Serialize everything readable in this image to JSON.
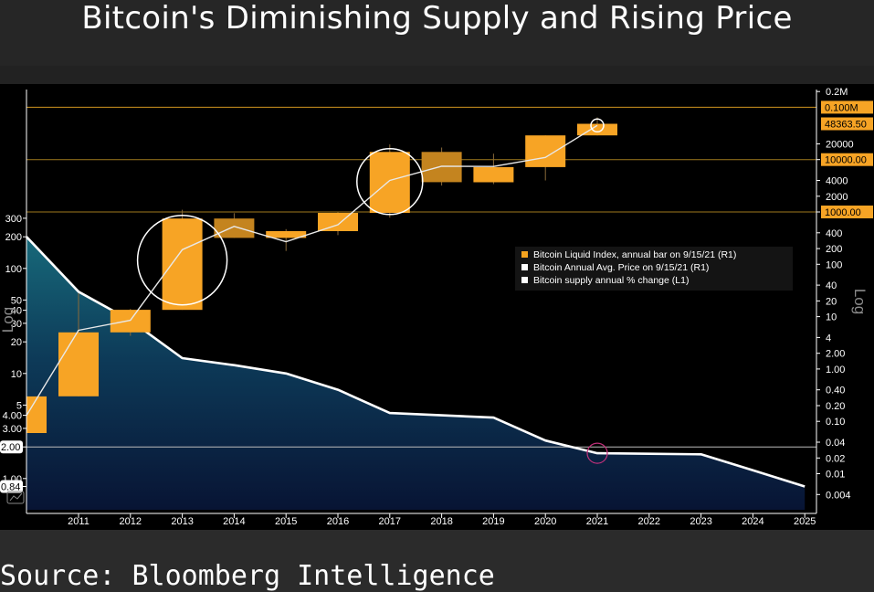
{
  "title": "Bitcoin's Diminishing Supply and Rising Price",
  "source": "Source: Bloomberg Intelligence",
  "chart_data": {
    "type": "mixed",
    "x_categories": [
      "2011",
      "2012",
      "2013",
      "2014",
      "2015",
      "2016",
      "2017",
      "2018",
      "2019",
      "2020",
      "2021",
      "2022",
      "2023",
      "2024",
      "2025"
    ],
    "left_axis": {
      "label": "Log",
      "scale": "log",
      "ticks": [
        "300",
        "200",
        "100",
        "50",
        "40",
        "30",
        "20",
        "10",
        "5",
        "4.00",
        "3.00",
        "2.00",
        "1.00",
        "0.84"
      ],
      "highlighted": [
        "2.00",
        "0.84"
      ]
    },
    "right_axis": {
      "label": "Log",
      "scale": "log",
      "ticks": [
        "0.2M",
        "20000",
        "10000",
        "4000",
        "2000",
        "1000",
        "400",
        "200",
        "100",
        "40",
        "20",
        "10",
        "4",
        "2.00",
        "1.00",
        "0.40",
        "0.20",
        "0.10",
        "0.04",
        "0.02",
        "0.01",
        "0.004"
      ],
      "badges": [
        "0.100M",
        "48363.50",
        "10000.00",
        "1000.00"
      ]
    },
    "legend": {
      "placement": "center-right",
      "entries": [
        {
          "label": "Bitcoin Liquid Index, annual bar on 9/15/21 (R1)",
          "color": "#f5a31f"
        },
        {
          "label": "Bitcoin Annual Avg. Price on 9/15/21 (R1)",
          "color": "#ffffff"
        },
        {
          "label": "Bitcoin supply annual % change  (L1)",
          "color": "#ffffff"
        }
      ]
    },
    "supply_pct_change": {
      "x": [
        2010,
        2011,
        2012,
        2013,
        2014,
        2015,
        2016,
        2017,
        2018,
        2019,
        2020,
        2021,
        2022,
        2023,
        2024,
        2025
      ],
      "y": [
        200,
        60,
        32,
        14,
        12,
        10,
        7,
        4.2,
        4.0,
        3.8,
        2.3,
        1.74,
        1.72,
        1.7,
        1.2,
        0.84
      ]
    },
    "annual_bars": [
      {
        "year": 2010,
        "open": 0.06,
        "close": 0.3,
        "high": 0.3,
        "low": 0.06,
        "color": "#f7a425"
      },
      {
        "year": 2011,
        "open": 0.3,
        "close": 5,
        "high": 28,
        "low": 0.3,
        "color": "#f7a425"
      },
      {
        "year": 2012,
        "open": 5,
        "close": 13.5,
        "high": 14,
        "low": 4.3,
        "color": "#f7a425"
      },
      {
        "year": 2013,
        "open": 13.5,
        "close": 750,
        "high": 1100,
        "low": 13.5,
        "color": "#f7a425"
      },
      {
        "year": 2014,
        "open": 750,
        "close": 320,
        "high": 950,
        "low": 320,
        "color": "#c4841f"
      },
      {
        "year": 2015,
        "open": 320,
        "close": 430,
        "high": 470,
        "low": 180,
        "color": "#f7a425"
      },
      {
        "year": 2016,
        "open": 430,
        "close": 960,
        "high": 980,
        "low": 360,
        "color": "#f7a425"
      },
      {
        "year": 2017,
        "open": 960,
        "close": 14000,
        "high": 19500,
        "low": 780,
        "color": "#f7a425"
      },
      {
        "year": 2018,
        "open": 14000,
        "close": 3700,
        "high": 17000,
        "low": 3200,
        "color": "#c4841f"
      },
      {
        "year": 2019,
        "open": 3700,
        "close": 7200,
        "high": 13000,
        "low": 3400,
        "color": "#f7a425"
      },
      {
        "year": 2020,
        "open": 7200,
        "close": 29000,
        "high": 29000,
        "low": 4000,
        "color": "#f7a425"
      },
      {
        "year": 2021,
        "open": 29000,
        "close": 48363.5,
        "high": 64000,
        "low": 29000,
        "color": "#f7a425"
      }
    ],
    "annual_avg_price": {
      "x": [
        2010,
        2011,
        2012,
        2013,
        2014,
        2015,
        2016,
        2017,
        2018,
        2019,
        2020,
        2021
      ],
      "y": [
        0.13,
        5.5,
        8.5,
        190,
        530,
        270,
        570,
        4000,
        7500,
        7400,
        11000,
        45000
      ]
    },
    "circles": [
      {
        "year": 2013,
        "value": 120,
        "color": "#ffffff"
      },
      {
        "year": 2017,
        "value": 3800,
        "color": "#ffffff"
      },
      {
        "year": 2021,
        "value": 45000,
        "color": "#ffffff"
      },
      {
        "year": 2021,
        "value": 0.09,
        "color": "#c0307a"
      }
    ],
    "reference_lines": [
      {
        "axis": "right",
        "value": 100000,
        "color": "#d1951f"
      },
      {
        "axis": "right",
        "value": 10000,
        "color": "#a07a1e"
      },
      {
        "axis": "right",
        "value": 1000,
        "color": "#a07a1e"
      },
      {
        "axis": "left",
        "value": 2.0,
        "color": "#bbbbbb"
      }
    ],
    "colors": {
      "bar": "#f7a425",
      "bar_down": "#c4841f",
      "area_top": "#17697a",
      "area_bottom": "#081434",
      "line": "#ffffff",
      "badge": "#f7a425"
    }
  }
}
